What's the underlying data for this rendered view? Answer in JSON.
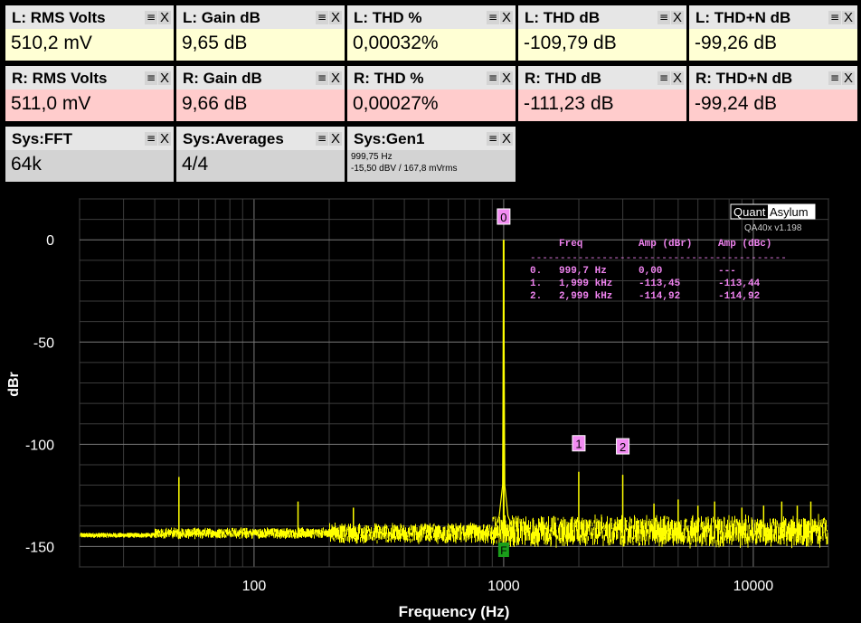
{
  "tiles": [
    {
      "id": "l-rms",
      "title": "L: RMS Volts",
      "value": "510,2 mV",
      "bg": "#ffffd4"
    },
    {
      "id": "l-gain",
      "title": "L: Gain dB",
      "value": "9,65 dB",
      "bg": "#ffffd4"
    },
    {
      "id": "l-thd-pct",
      "title": "L: THD %",
      "value": "0,00032%",
      "bg": "#ffffd4"
    },
    {
      "id": "l-thd-db",
      "title": "L: THD dB",
      "value": "-109,79 dB",
      "bg": "#ffffd4"
    },
    {
      "id": "l-thdn-db",
      "title": "L: THD+N dB",
      "value": "-99,26 dB",
      "bg": "#ffffd4"
    },
    {
      "id": "r-rms",
      "title": "R: RMS Volts",
      "value": "511,0 mV",
      "bg": "#ffcccc"
    },
    {
      "id": "r-gain",
      "title": "R: Gain dB",
      "value": "9,66 dB",
      "bg": "#ffcccc"
    },
    {
      "id": "r-thd-pct",
      "title": "R: THD %",
      "value": "0,00027%",
      "bg": "#ffcccc"
    },
    {
      "id": "r-thd-db",
      "title": "R: THD dB",
      "value": "-111,23 dB",
      "bg": "#ffcccc"
    },
    {
      "id": "r-thdn-db",
      "title": "R: THD+N dB",
      "value": "-99,24 dB",
      "bg": "#ffcccc"
    },
    {
      "id": "sys-fft",
      "title": "Sys:FFT",
      "value": "64k",
      "bg": "#d3d3d3"
    },
    {
      "id": "sys-averages",
      "title": "Sys:Averages",
      "value": "4/4",
      "bg": "#d3d3d3"
    },
    {
      "id": "sys-gen1",
      "title": "Sys:Gen1",
      "lines": [
        "999,75 Hz",
        "-15,50 dBV  / 167,8 mVrms"
      ],
      "bg": "#d3d3d3"
    }
  ],
  "tile_buttons": {
    "menu": "≡",
    "close": "X"
  },
  "chart_data": {
    "type": "line",
    "xlabel": "Frequency (Hz)",
    "ylabel": "dBr",
    "x_scale": "log",
    "xlim": [
      20,
      20000
    ],
    "ylim": [
      -160,
      20
    ],
    "x_ticks": [
      100,
      1000,
      10000
    ],
    "x_tick_labels": [
      "100",
      "1000",
      "10000"
    ],
    "y_ticks": [
      0,
      -50,
      -100,
      -150
    ],
    "y_tick_labels": [
      "0",
      "-50",
      "-100",
      "-150"
    ],
    "grid": true,
    "series_color": "#ffff00",
    "noise_floor_db": -144,
    "peaks": [
      {
        "f": 50,
        "db": -116
      },
      {
        "f": 150,
        "db": -128
      },
      {
        "f": 250,
        "db": -131
      },
      {
        "f": 999.7,
        "db": 0
      },
      {
        "f": 1999,
        "db": -113.45
      },
      {
        "f": 2999,
        "db": -114.92
      },
      {
        "f": 4000,
        "db": -129
      },
      {
        "f": 5000,
        "db": -127
      },
      {
        "f": 6000,
        "db": -130
      },
      {
        "f": 7000,
        "db": -128
      },
      {
        "f": 9000,
        "db": -131
      },
      {
        "f": 11000,
        "db": -130
      },
      {
        "f": 13000,
        "db": -128
      },
      {
        "f": 15000,
        "db": -130
      },
      {
        "f": 17000,
        "db": -128
      }
    ],
    "markers": [
      {
        "label": "0",
        "f": 999.7,
        "db": 0,
        "bg": "#f28cf2"
      },
      {
        "label": "1",
        "f": 1999,
        "db": -113.45,
        "bg": "#f28cf2"
      },
      {
        "label": "2",
        "f": 2999,
        "db": -114.92,
        "bg": "#f28cf2"
      }
    ],
    "fund_marker": {
      "label": "F",
      "f": 999.7,
      "bg": "#1a9e1a"
    },
    "harmonic_table": {
      "color": "#ee82ee",
      "header": [
        "Freq",
        "Amp (dBr)",
        "Amp (dBc)"
      ],
      "divider": "-------------------------------------------",
      "rows": [
        [
          "0.",
          "999,7 Hz",
          "0,00",
          "---"
        ],
        [
          "1.",
          "1,999 kHz",
          "-113,45",
          "-113,44"
        ],
        [
          "2.",
          "2,999 kHz",
          "-114,92",
          "-114,92"
        ]
      ]
    },
    "logo": {
      "brand_a": "Quant",
      "brand_b": "Asylum",
      "version": "QA40x v1.198"
    }
  }
}
